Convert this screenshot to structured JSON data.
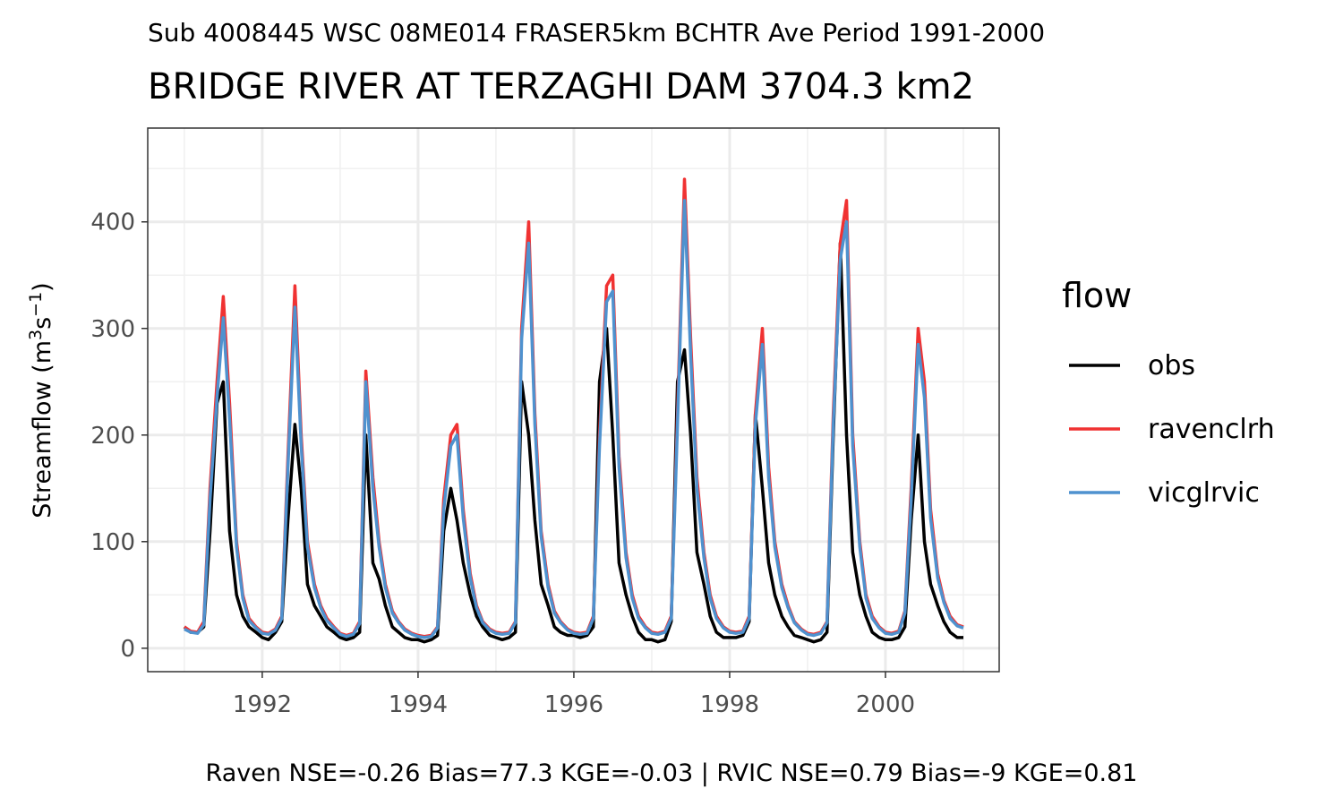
{
  "chart_data": {
    "type": "line",
    "subtitle": "Sub 4008445 WSC 08ME014 FRASER5km BCHTR Ave Period 1991-2000",
    "title": "BRIDGE RIVER AT TERZAGHI DAM 3704.3 km2",
    "y_label": {
      "text": "Streamflow (m",
      "sup1": "3",
      "mid": "s",
      "sup2": "−1",
      "end": ")"
    },
    "annotation": "Raven NSE=-0.26 Bias=77.3 KGE=-0.03 | RVIC NSE=0.79 Bias=-9 KGE=0.81",
    "legend_title": "flow",
    "xlim": [
      1990.53,
      2001.46
    ],
    "ylim": [
      -22,
      488
    ],
    "xticks": [
      1992,
      1994,
      1996,
      1998,
      2000
    ],
    "yticks": [
      0,
      100,
      200,
      300,
      400
    ],
    "grid": true,
    "x": [
      1991,
      1991.08,
      1991.17,
      1991.25,
      1991.33,
      1991.42,
      1991.5,
      1991.58,
      1991.67,
      1991.75,
      1991.83,
      1991.92,
      1992,
      1992.08,
      1992.17,
      1992.25,
      1992.33,
      1992.42,
      1992.5,
      1992.58,
      1992.67,
      1992.75,
      1992.83,
      1992.92,
      1993,
      1993.08,
      1993.17,
      1993.25,
      1993.33,
      1993.42,
      1993.5,
      1993.58,
      1993.67,
      1993.75,
      1993.83,
      1993.92,
      1994,
      1994.08,
      1994.17,
      1994.25,
      1994.33,
      1994.42,
      1994.5,
      1994.58,
      1994.67,
      1994.75,
      1994.83,
      1994.92,
      1995,
      1995.08,
      1995.17,
      1995.25,
      1995.33,
      1995.42,
      1995.5,
      1995.58,
      1995.67,
      1995.75,
      1995.83,
      1995.92,
      1996,
      1996.08,
      1996.17,
      1996.25,
      1996.33,
      1996.42,
      1996.5,
      1996.58,
      1996.67,
      1996.75,
      1996.83,
      1996.92,
      1997,
      1997.08,
      1997.17,
      1997.25,
      1997.33,
      1997.42,
      1997.5,
      1997.58,
      1997.67,
      1997.75,
      1997.83,
      1997.92,
      1998,
      1998.08,
      1998.17,
      1998.25,
      1998.33,
      1998.42,
      1998.5,
      1998.58,
      1998.67,
      1998.75,
      1998.83,
      1998.92,
      1999,
      1999.08,
      1999.17,
      1999.25,
      1999.33,
      1999.42,
      1999.5,
      1999.58,
      1999.67,
      1999.75,
      1999.83,
      1999.92,
      2000,
      2000.08,
      2000.17,
      2000.25,
      2000.33,
      2000.42,
      2000.5,
      2000.58,
      2000.67,
      2000.75,
      2000.83,
      2000.92,
      2001
    ],
    "series": [
      {
        "name": "obs",
        "color": "#000000",
        "values": [
          20,
          15,
          15,
          20,
          110,
          230,
          250,
          110,
          50,
          30,
          20,
          15,
          10,
          8,
          15,
          25,
          120,
          210,
          150,
          60,
          40,
          30,
          20,
          15,
          10,
          8,
          10,
          15,
          200,
          80,
          65,
          40,
          20,
          15,
          10,
          8,
          8,
          6,
          8,
          12,
          110,
          150,
          120,
          80,
          50,
          30,
          20,
          12,
          10,
          8,
          10,
          15,
          250,
          200,
          120,
          60,
          40,
          20,
          15,
          12,
          12,
          10,
          12,
          20,
          250,
          300,
          200,
          80,
          50,
          30,
          15,
          8,
          8,
          6,
          8,
          25,
          250,
          280,
          200,
          90,
          60,
          30,
          15,
          10,
          10,
          10,
          12,
          25,
          220,
          150,
          80,
          50,
          30,
          20,
          12,
          10,
          8,
          6,
          8,
          15,
          200,
          380,
          200,
          90,
          50,
          30,
          15,
          10,
          8,
          8,
          10,
          20,
          120,
          200,
          100,
          60,
          40,
          25,
          15,
          10,
          10
        ]
      },
      {
        "name": "ravenclrh",
        "color": "#f03232",
        "values": [
          20,
          16,
          15,
          25,
          150,
          250,
          330,
          230,
          100,
          50,
          28,
          20,
          15,
          14,
          18,
          30,
          180,
          340,
          200,
          100,
          60,
          40,
          28,
          20,
          14,
          12,
          14,
          25,
          260,
          160,
          100,
          60,
          35,
          25,
          18,
          14,
          12,
          11,
          12,
          20,
          140,
          200,
          210,
          130,
          70,
          40,
          25,
          18,
          15,
          14,
          15,
          25,
          300,
          400,
          220,
          110,
          60,
          35,
          25,
          18,
          15,
          14,
          15,
          30,
          200,
          340,
          350,
          180,
          90,
          50,
          30,
          20,
          15,
          14,
          16,
          30,
          220,
          440,
          290,
          160,
          90,
          50,
          30,
          20,
          16,
          15,
          16,
          30,
          220,
          300,
          170,
          100,
          60,
          40,
          25,
          18,
          14,
          13,
          15,
          25,
          220,
          380,
          420,
          200,
          100,
          50,
          30,
          20,
          15,
          14,
          16,
          35,
          150,
          300,
          250,
          130,
          70,
          45,
          30,
          22,
          20
        ]
      },
      {
        "name": "vicglrvic",
        "color": "#4f92cf",
        "values": [
          18,
          15,
          14,
          22,
          140,
          235,
          310,
          215,
          95,
          47,
          26,
          19,
          14,
          13,
          17,
          28,
          170,
          320,
          190,
          95,
          57,
          38,
          26,
          19,
          13,
          11,
          13,
          23,
          250,
          150,
          95,
          57,
          33,
          24,
          17,
          13,
          11,
          10,
          11,
          19,
          130,
          190,
          200,
          122,
          66,
          38,
          24,
          17,
          14,
          13,
          14,
          24,
          290,
          380,
          210,
          105,
          57,
          33,
          24,
          17,
          14,
          13,
          14,
          28,
          190,
          325,
          335,
          170,
          85,
          47,
          28,
          19,
          14,
          13,
          15,
          28,
          210,
          420,
          275,
          150,
          85,
          47,
          28,
          19,
          15,
          14,
          15,
          28,
          210,
          285,
          160,
          95,
          57,
          38,
          24,
          17,
          13,
          12,
          14,
          24,
          210,
          365,
          400,
          190,
          95,
          47,
          28,
          19,
          14,
          13,
          15,
          33,
          140,
          285,
          235,
          122,
          66,
          43,
          28,
          21,
          19
        ]
      }
    ]
  }
}
